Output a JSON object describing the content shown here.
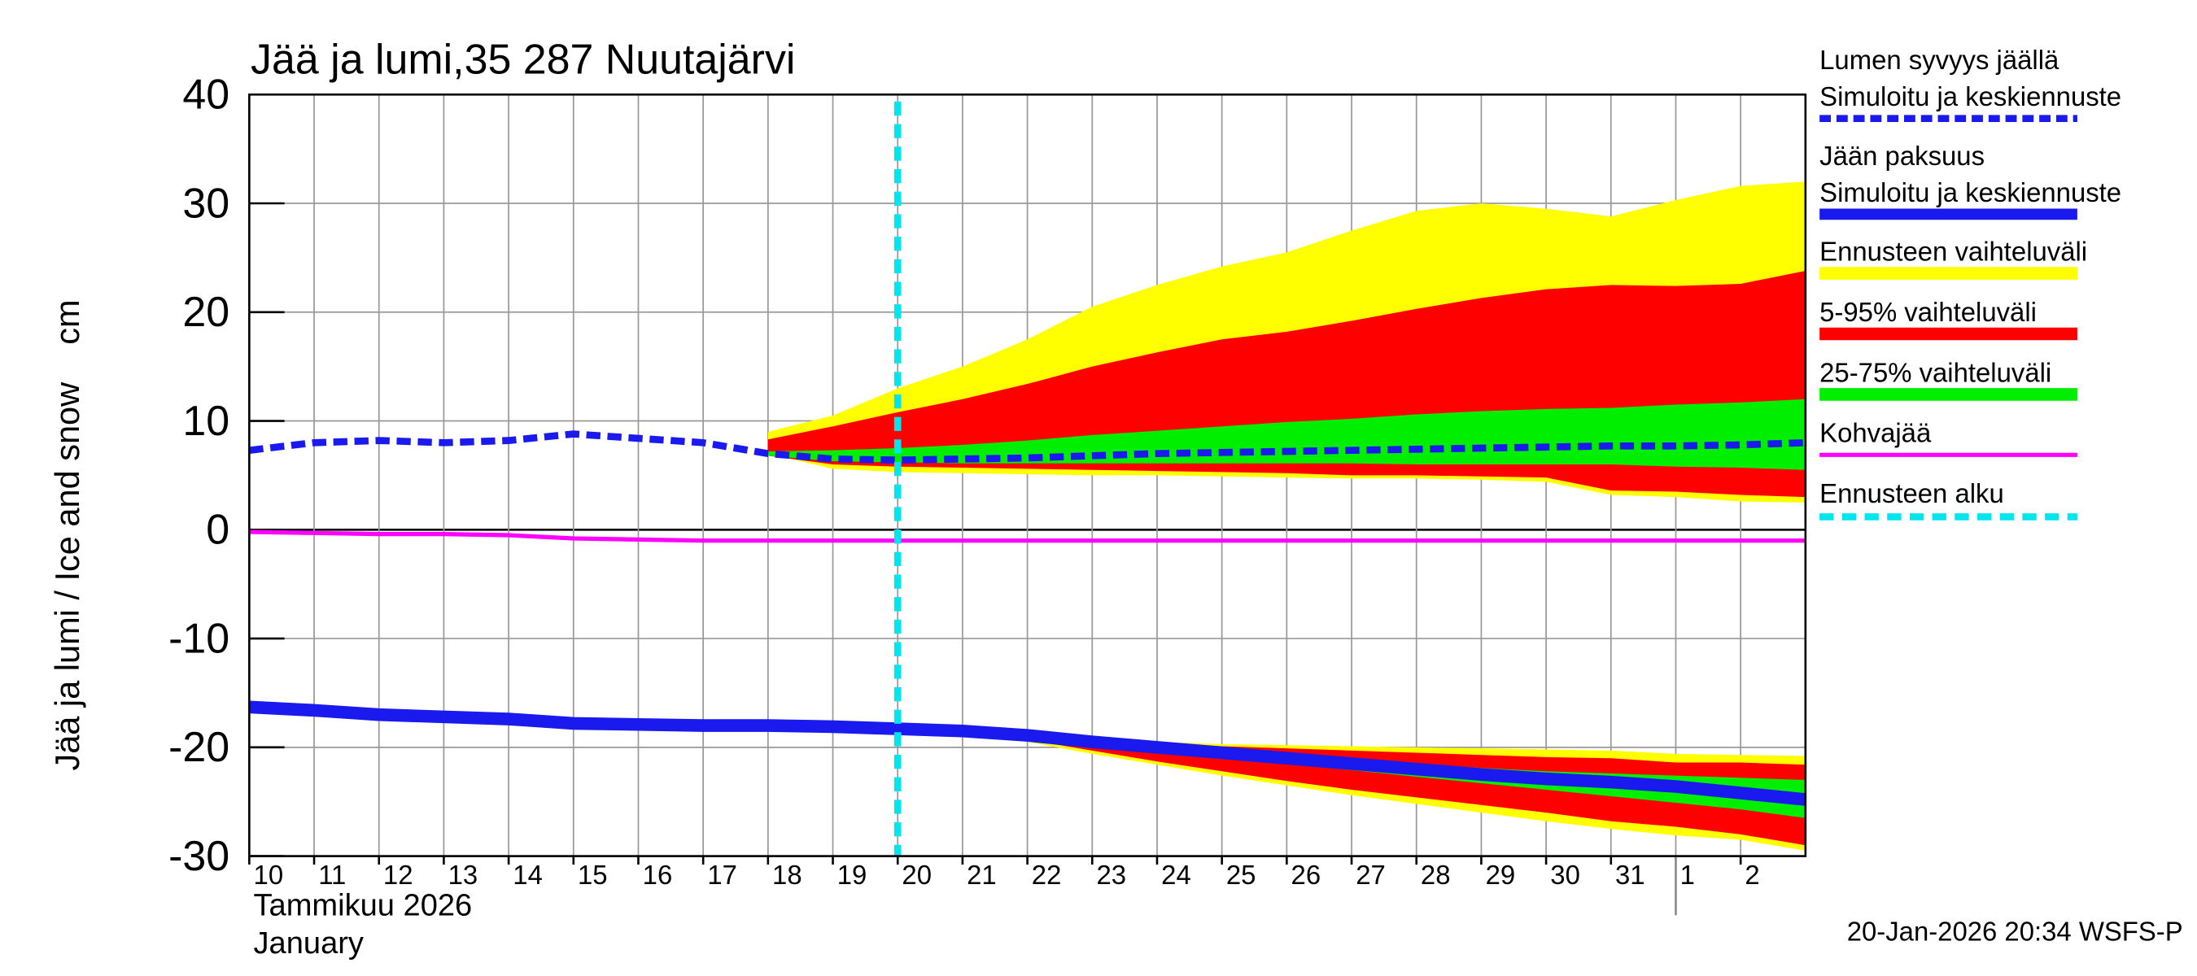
{
  "chart_data": {
    "type": "line",
    "title": "Jää ja lumi,35 287 Nuutajärvi",
    "ylabel": "Jää ja lumi / Ice and snow    cm",
    "xlabel": "Tammikuu  2026",
    "xlabel2": "January",
    "footer": "20-Jan-2026 20:34 WSFS-P",
    "x": [
      "2026-01-10",
      "2026-01-11",
      "2026-01-12",
      "2026-01-13",
      "2026-01-14",
      "2026-01-15",
      "2026-01-16",
      "2026-01-17",
      "2026-01-18",
      "2026-01-19",
      "2026-01-20",
      "2026-01-21",
      "2026-01-22",
      "2026-01-23",
      "2026-01-24",
      "2026-01-25",
      "2026-01-26",
      "2026-01-27",
      "2026-01-28",
      "2026-01-29",
      "2026-01-30",
      "2026-01-31",
      "2026-02-01",
      "2026-02-02",
      "2026-02-03"
    ],
    "xlim": [
      "2026-01-10",
      "2026-02-03"
    ],
    "xticks": [
      {
        "value": "2026-01-10",
        "label": "10"
      },
      {
        "value": "2026-01-11",
        "label": "11"
      },
      {
        "value": "2026-01-12",
        "label": "12"
      },
      {
        "value": "2026-01-13",
        "label": "13"
      },
      {
        "value": "2026-01-14",
        "label": "14"
      },
      {
        "value": "2026-01-15",
        "label": "15"
      },
      {
        "value": "2026-01-16",
        "label": "16"
      },
      {
        "value": "2026-01-17",
        "label": "17"
      },
      {
        "value": "2026-01-18",
        "label": "18"
      },
      {
        "value": "2026-01-19",
        "label": "19"
      },
      {
        "value": "2026-01-20",
        "label": "20"
      },
      {
        "value": "2026-01-21",
        "label": "21"
      },
      {
        "value": "2026-01-22",
        "label": "22"
      },
      {
        "value": "2026-01-23",
        "label": "23"
      },
      {
        "value": "2026-01-24",
        "label": "24"
      },
      {
        "value": "2026-01-25",
        "label": "25"
      },
      {
        "value": "2026-01-26",
        "label": "26"
      },
      {
        "value": "2026-01-27",
        "label": "27"
      },
      {
        "value": "2026-01-28",
        "label": "28"
      },
      {
        "value": "2026-01-29",
        "label": "29"
      },
      {
        "value": "2026-01-30",
        "label": "30"
      },
      {
        "value": "2026-01-31",
        "label": "31"
      },
      {
        "value": "2026-02-01",
        "label": "1"
      },
      {
        "value": "2026-02-02",
        "label": "2"
      }
    ],
    "ylim": [
      -30,
      40
    ],
    "yticks": [
      40,
      30,
      20,
      10,
      0,
      -10,
      -20,
      -30
    ],
    "grid": true,
    "zero_line": true,
    "legend": "right",
    "series": [
      {
        "name": "Lumen syvyys jäällä",
        "legend_sub": "Simuloitu ja keskiennuste",
        "color": "#1a1aee",
        "style": "dashed",
        "values": [
          7.3,
          8.0,
          8.2,
          8.0,
          8.2,
          8.8,
          8.4,
          8.0,
          7.0,
          6.5,
          6.4,
          6.5,
          6.6,
          6.8,
          7.0,
          7.1,
          7.2,
          7.3,
          7.4,
          7.5,
          7.6,
          7.7,
          7.7,
          7.8,
          8.0
        ]
      },
      {
        "name": "Jään paksuus",
        "legend_sub": "Simuloitu ja keskiennuste",
        "color": "#1a1aee",
        "style": "solid",
        "values": [
          -16.3,
          -16.6,
          -17.0,
          -17.2,
          -17.4,
          -17.8,
          -17.9,
          -18.0,
          -18.0,
          -18.1,
          -18.3,
          -18.5,
          -18.9,
          -19.5,
          -20.0,
          -20.5,
          -21.0,
          -21.5,
          -22.0,
          -22.5,
          -22.9,
          -23.2,
          -23.6,
          -24.2,
          -24.8
        ]
      },
      {
        "name": "Kohvajää",
        "color": "#ff00ff",
        "style": "solid",
        "values": [
          -0.2,
          -0.3,
          -0.4,
          -0.4,
          -0.5,
          -0.8,
          -0.9,
          -1.0,
          -1.0,
          -1.0,
          -1.0,
          -1.0,
          -1.0,
          -1.0,
          -1.0,
          -1.0,
          -1.0,
          -1.0,
          -1.0,
          -1.0,
          -1.0,
          -1.0,
          -1.0,
          -1.0,
          -1.0
        ]
      }
    ],
    "bands": [
      {
        "name": "Ennusteen vaihteluväli",
        "color": "#ffff00",
        "parts": [
          {
            "upper": [
              null,
              null,
              null,
              null,
              null,
              null,
              null,
              null,
              9,
              10.5,
              13,
              15,
              17.5,
              20.5,
              22.5,
              24.2,
              25.5,
              27.5,
              29.3,
              30,
              29.5,
              28.8,
              30.3,
              31.6,
              32
            ],
            "lower": [
              null,
              null,
              null,
              null,
              null,
              null,
              null,
              null,
              7,
              5.6,
              5.3,
              5.2,
              5.1,
              5.0,
              5.0,
              4.9,
              4.8,
              4.7,
              4.7,
              4.6,
              4.4,
              3.2,
              3.0,
              2.6,
              2.5
            ]
          },
          {
            "upper": [
              null,
              null,
              null,
              null,
              null,
              null,
              null,
              null,
              null,
              null,
              -18.2,
              -18.4,
              -18.8,
              -19.2,
              -19.5,
              -19.7,
              -19.8,
              -19.9,
              -20.0,
              -20.1,
              -20.2,
              -20.3,
              -20.6,
              -20.7,
              -20.8
            ],
            "lower": [
              null,
              null,
              null,
              null,
              null,
              null,
              null,
              null,
              null,
              null,
              -18.3,
              -18.7,
              -19.5,
              -20.6,
              -21.6,
              -22.6,
              -23.5,
              -24.4,
              -25.2,
              -26.0,
              -26.8,
              -27.5,
              -28.1,
              -28.5,
              -29.5
            ]
          }
        ]
      },
      {
        "name": "5-95% vaihteluväli",
        "color": "#ff0000",
        "parts": [
          {
            "upper": [
              null,
              null,
              null,
              null,
              null,
              null,
              null,
              null,
              8.3,
              9.5,
              10.8,
              12,
              13.4,
              15,
              16.3,
              17.5,
              18.2,
              19.2,
              20.3,
              21.3,
              22.1,
              22.5,
              22.4,
              22.6,
              23.8
            ],
            "lower": [
              null,
              null,
              null,
              null,
              null,
              null,
              null,
              null,
              6.8,
              6,
              5.8,
              5.7,
              5.6,
              5.5,
              5.4,
              5.3,
              5.2,
              5.0,
              5.0,
              4.9,
              4.8,
              3.6,
              3.5,
              3.2,
              3.0
            ]
          },
          {
            "upper": [
              null,
              null,
              null,
              null,
              null,
              null,
              null,
              null,
              null,
              null,
              -18.2,
              -18.4,
              -18.8,
              -19.2,
              -19.6,
              -19.9,
              -20.1,
              -20.3,
              -20.5,
              -20.7,
              -20.9,
              -21.0,
              -21.4,
              -21.4,
              -21.6
            ],
            "lower": [
              null,
              null,
              null,
              null,
              null,
              null,
              null,
              null,
              null,
              null,
              -18.3,
              -18.6,
              -19.3,
              -20.3,
              -21.3,
              -22.2,
              -23.1,
              -23.9,
              -24.6,
              -25.3,
              -26.0,
              -26.8,
              -27.3,
              -28.0,
              -29.0
            ]
          }
        ]
      },
      {
        "name": "25-75% vaihteluväli",
        "color": "#00ee00",
        "parts": [
          {
            "upper": [
              null,
              null,
              null,
              null,
              null,
              null,
              null,
              null,
              7.2,
              7.3,
              7.5,
              7.8,
              8.2,
              8.7,
              9.1,
              9.5,
              9.9,
              10.2,
              10.6,
              10.9,
              11.1,
              11.2,
              11.5,
              11.7,
              12.0
            ],
            "lower": [
              null,
              null,
              null,
              null,
              null,
              null,
              null,
              null,
              6.8,
              6.3,
              6.2,
              6.1,
              6.1,
              6.1,
              6.1,
              6.1,
              6.1,
              6.1,
              6.0,
              6.0,
              6.0,
              6.0,
              5.8,
              5.7,
              5.5
            ]
          },
          {
            "upper": [
              null,
              null,
              null,
              null,
              null,
              null,
              null,
              null,
              null,
              null,
              -18.2,
              -18.4,
              -18.8,
              -19.3,
              -19.8,
              -20.2,
              -20.6,
              -21.0,
              -21.5,
              -21.9,
              -22.2,
              -22.4,
              -22.6,
              -22.8,
              -23.0
            ],
            "lower": [
              null,
              null,
              null,
              null,
              null,
              null,
              null,
              null,
              null,
              null,
              -18.3,
              -18.5,
              -19.0,
              -19.7,
              -20.3,
              -20.9,
              -21.5,
              -22.1,
              -22.7,
              -23.3,
              -23.9,
              -24.5,
              -25.1,
              -25.7,
              -26.5
            ]
          }
        ]
      }
    ],
    "forecast_start": {
      "name": "Ennusteen alku",
      "x": "2026-01-20",
      "color": "#00e5ee"
    }
  }
}
